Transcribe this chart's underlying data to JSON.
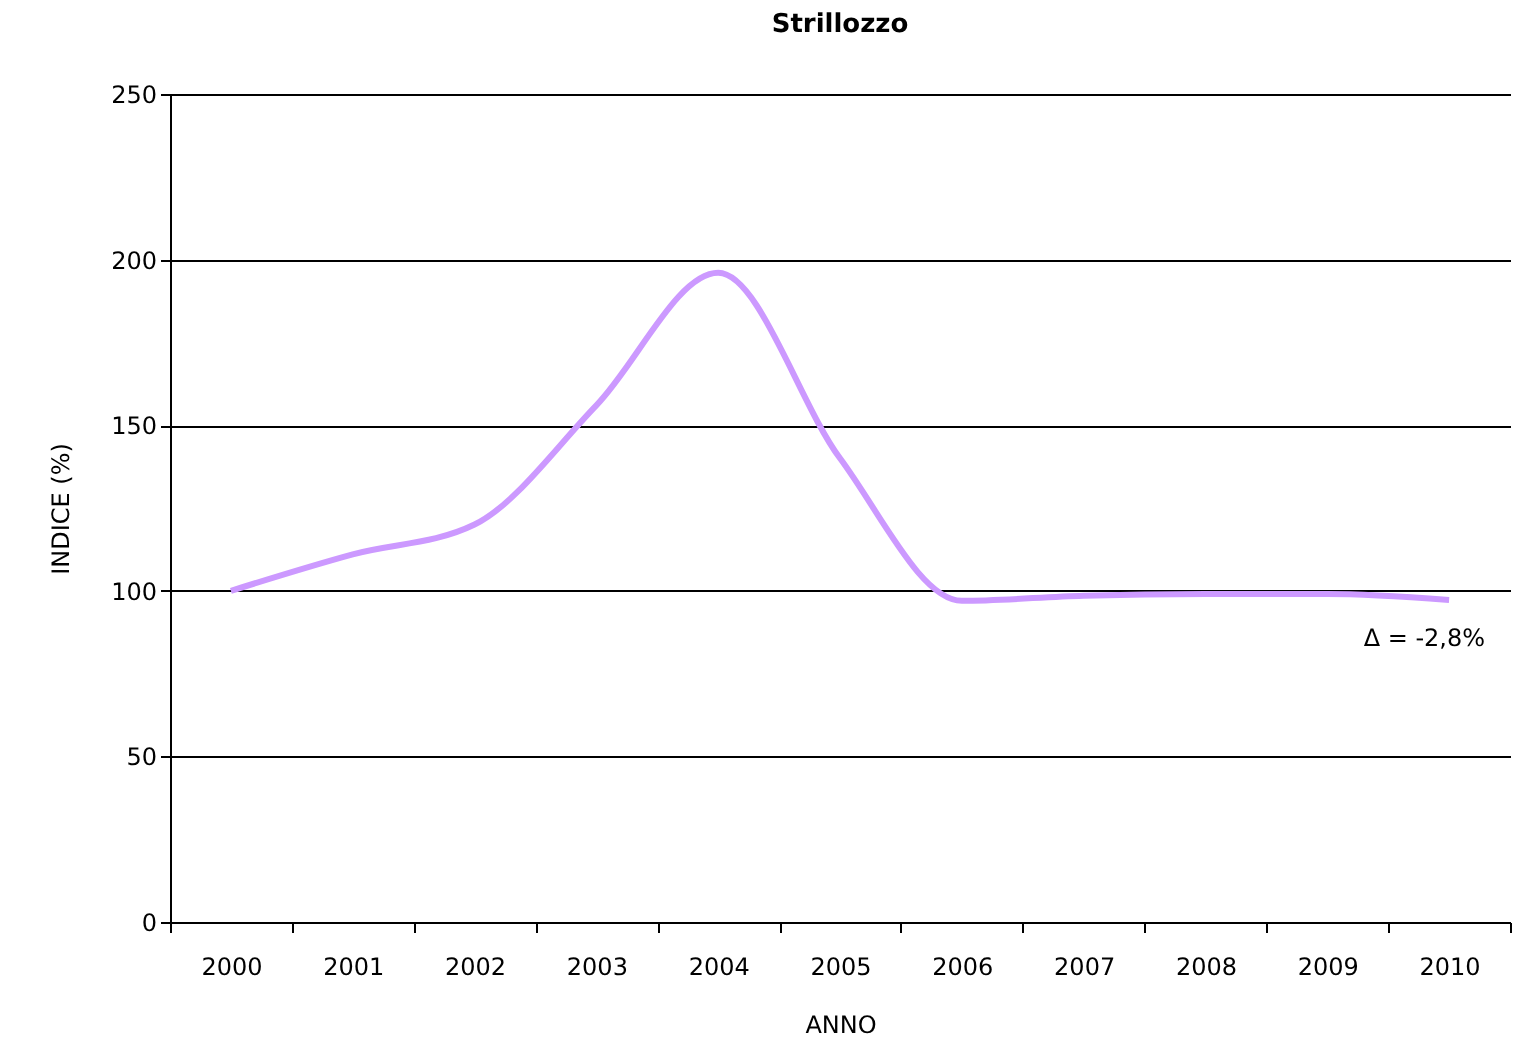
{
  "chart_data": {
    "type": "line",
    "title": "Strillozzo",
    "xlabel": "ANNO",
    "ylabel": "INDICE (%)",
    "categories": [
      "2000",
      "2001",
      "2002",
      "2003",
      "2004",
      "2005",
      "2006",
      "2007",
      "2008",
      "2009",
      "2010"
    ],
    "series": [
      {
        "color": "#cc99ff",
        "values": [
          100,
          111,
          120,
          156,
          196,
          140,
          97,
          98.5,
          99,
          99,
          97.2
        ]
      }
    ],
    "ylim": [
      0,
      250
    ],
    "yticks": [
      0,
      50,
      100,
      150,
      200,
      250
    ],
    "grid": "y",
    "legend": false,
    "marker": "none",
    "line_style": "solid",
    "annotations": [
      {
        "text": "Δ = -2,8%",
        "x": "2010",
        "y": 97.2
      }
    ]
  }
}
